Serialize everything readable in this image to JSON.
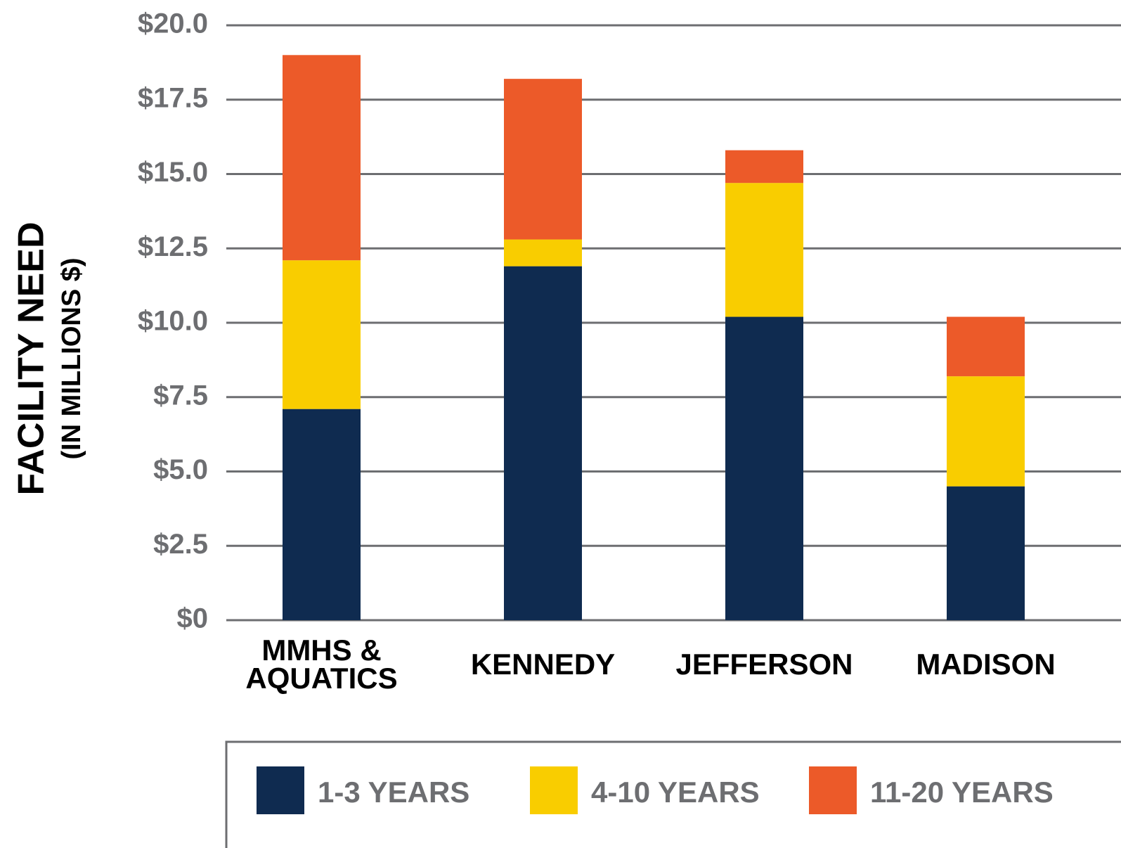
{
  "chart_data": {
    "type": "stacked_bar",
    "y_label": "FACILITY NEED",
    "y_sublabel": "(IN MILLIONS $)",
    "categories": [
      "MMHS & AQUATICS",
      "KENNEDY",
      "JEFFERSON",
      "MADISON"
    ],
    "series": [
      {
        "name": "1-3 YEARS",
        "color": "#0f2b50",
        "values": [
          7.1,
          11.9,
          10.2,
          4.5
        ]
      },
      {
        "name": "4-10 YEARS",
        "color": "#f9cd00",
        "values": [
          5.0,
          0.9,
          4.5,
          3.7
        ]
      },
      {
        "name": "11-20 YEARS",
        "color": "#ec5a29",
        "values": [
          6.9,
          5.4,
          1.1,
          2.0
        ]
      }
    ],
    "ylim": [
      0,
      20
    ],
    "yticks": [
      {
        "value": 0,
        "label": "$0"
      },
      {
        "value": 2.5,
        "label": "$2.5"
      },
      {
        "value": 5,
        "label": "$5.0"
      },
      {
        "value": 7.5,
        "label": "$7.5"
      },
      {
        "value": 10,
        "label": "$10.0"
      },
      {
        "value": 12.5,
        "label": "$12.5"
      },
      {
        "value": 15,
        "label": "$15.0"
      },
      {
        "value": 17.5,
        "label": "$17.5"
      },
      {
        "value": 20,
        "label": "$20.0"
      }
    ],
    "grid": true,
    "legend": "bottom"
  }
}
